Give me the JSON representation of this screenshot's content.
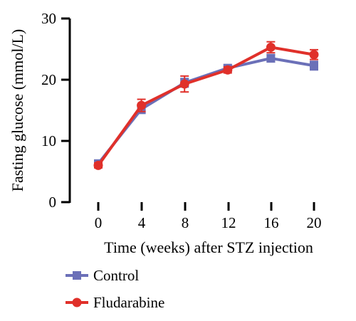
{
  "chart_data": {
    "type": "line",
    "x": [
      0,
      4,
      8,
      12,
      16,
      20
    ],
    "xticks": [
      "0",
      "4",
      "8",
      "12",
      "16",
      "20"
    ],
    "yticks": [
      "0",
      "10",
      "20",
      "30"
    ],
    "xlabel": "Time (weeks) after STZ injection",
    "ylabel": "Fasting glucose (mmol/L)",
    "ylim": [
      0,
      30
    ],
    "legend_position": "bottom-left",
    "grid": false,
    "series": [
      {
        "name": "Control",
        "color": "#6b70b8",
        "marker": "square",
        "values": [
          6.3,
          15.2,
          19.5,
          21.9,
          23.5,
          22.3
        ],
        "errors": [
          0.4,
          0.7,
          0.7,
          0.5,
          0.6,
          0.7
        ]
      },
      {
        "name": "Fludarabine",
        "color": "#e0302a",
        "marker": "circle",
        "values": [
          6.0,
          15.8,
          19.3,
          21.6,
          25.3,
          24.1
        ],
        "errors": [
          0.4,
          1.0,
          1.3,
          0.5,
          0.9,
          0.8
        ]
      }
    ]
  }
}
